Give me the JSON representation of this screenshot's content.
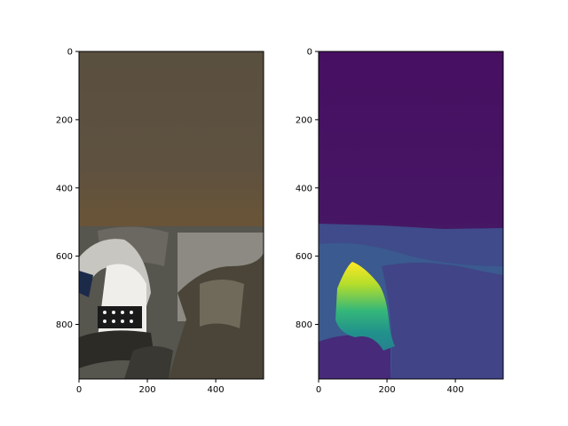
{
  "chart_data": [
    {
      "type": "image",
      "content": "rgb render of indoor scene",
      "xlim": [
        0,
        540
      ],
      "ylim": [
        960,
        0
      ],
      "xticks": [
        0,
        200,
        400
      ],
      "yticks": [
        0,
        200,
        400,
        600,
        800
      ]
    },
    {
      "type": "heatmap",
      "content": "depth map of same scene",
      "colormap": "viridis",
      "xlim": [
        0,
        540
      ],
      "ylim": [
        960,
        0
      ],
      "xticks": [
        0,
        200,
        400
      ],
      "yticks": [
        0,
        200,
        400,
        600,
        800
      ]
    }
  ]
}
